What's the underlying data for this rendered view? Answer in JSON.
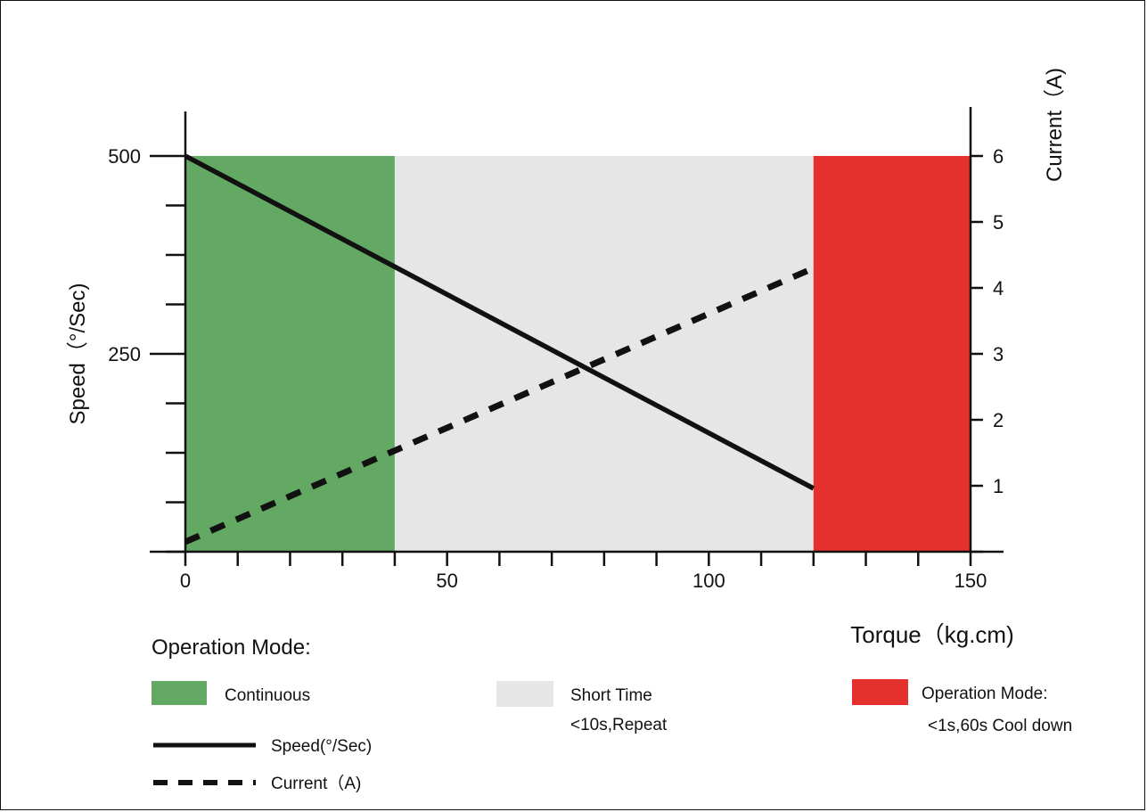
{
  "chart_data": {
    "type": "line",
    "x": {
      "label": "Torque（kg.cm)",
      "lim": [
        0,
        150
      ],
      "ticks": [
        0,
        50,
        100,
        150
      ]
    },
    "y_left": {
      "label": "Speed（°/Sec)",
      "lim": [
        0,
        500
      ],
      "ticks": [
        250,
        500
      ]
    },
    "y_right": {
      "label": "Current（A)",
      "lim": [
        0,
        6
      ],
      "ticks": [
        1,
        2,
        3,
        4,
        5,
        6
      ]
    },
    "regions": [
      {
        "name": "Continuous",
        "x": [
          0,
          40
        ],
        "color": "#63a964"
      },
      {
        "name": "Short Time",
        "x": [
          40,
          120
        ],
        "color": "#e6e6e6"
      },
      {
        "name": "Operation Mode:",
        "x": [
          120,
          150
        ],
        "color": "#e4312d"
      }
    ],
    "series": [
      {
        "name": "Speed(°/Sec)",
        "axis": "left",
        "style": "solid",
        "color": "#111111",
        "x": [
          0,
          120
        ],
        "y": [
          500,
          80
        ]
      },
      {
        "name": "Current（A)",
        "axis": "right",
        "style": "dashed",
        "color": "#111111",
        "x": [
          0,
          120
        ],
        "y": [
          0.15,
          4.3
        ]
      }
    ],
    "grid": false
  },
  "legend": {
    "heading": "Operation Mode:",
    "modes": [
      {
        "line1": "Continuous",
        "line2": "",
        "color": "#63a964"
      },
      {
        "line1": "Short Time",
        "line2": "<10s,Repeat",
        "color": "#e6e6e6"
      },
      {
        "line1": "Operation Mode:",
        "line2": "<1s,60s Cool down",
        "color": "#e4312d"
      }
    ],
    "lines": [
      {
        "label": "Speed(°/Sec)",
        "style": "solid"
      },
      {
        "label": "Current（A)",
        "style": "dashed"
      }
    ]
  }
}
